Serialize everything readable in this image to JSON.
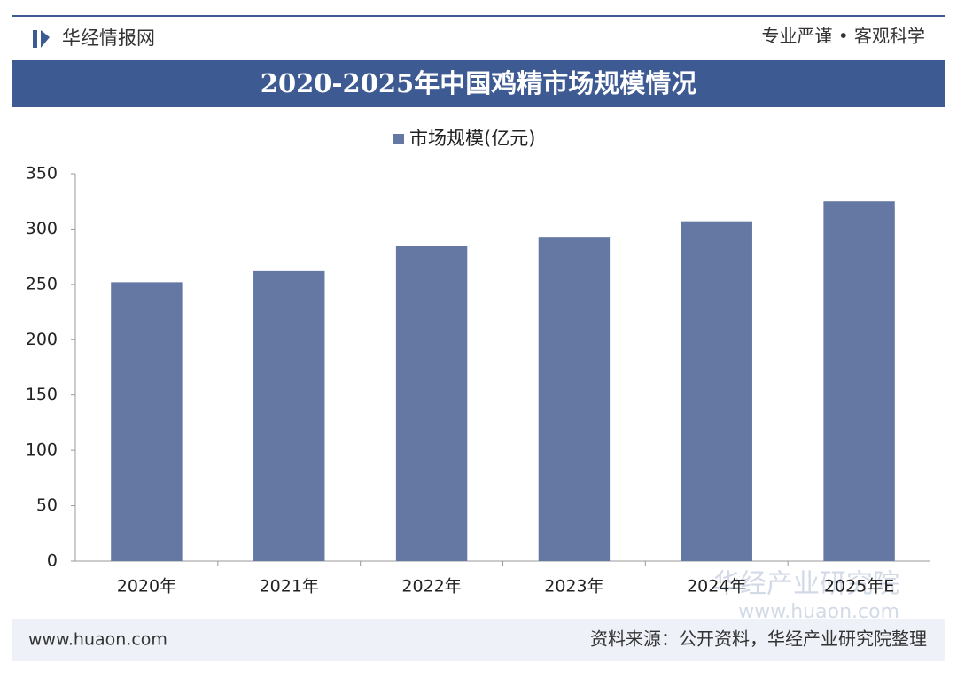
{
  "header": {
    "brand": "华经情报网",
    "slogan": "专业严谨 • 客观科学"
  },
  "chart_data": {
    "type": "bar",
    "title": "2020-2025年中国鸡精市场规模情况",
    "categories": [
      "2020年",
      "2021年",
      "2022年",
      "2023年",
      "2024年",
      "2025年E"
    ],
    "series": [
      {
        "name": "市场规模(亿元)",
        "color": "#6478a3",
        "values": [
          252,
          262,
          285,
          293,
          307,
          325
        ]
      }
    ],
    "ylim": [
      0,
      350
    ],
    "yticks": [
      0,
      50,
      100,
      150,
      200,
      250,
      300,
      350
    ],
    "grid": false,
    "legend": "top"
  },
  "watermark": {
    "name": "华经产业研究院",
    "url": "www.huaon.com"
  },
  "footer": {
    "website": "www.huaon.com",
    "source": "资料来源：公开资料，华经产业研究院整理"
  }
}
